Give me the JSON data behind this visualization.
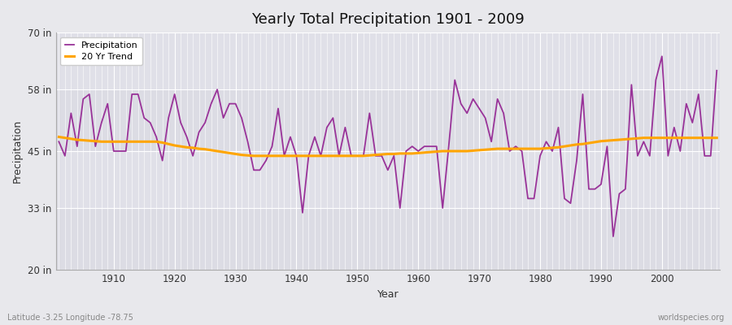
{
  "title": "Yearly Total Precipitation 1901 - 2009",
  "xlabel": "Year",
  "ylabel": "Precipitation",
  "subtitle": "Latitude -3.25 Longitude -78.75",
  "watermark": "worldspecies.org",
  "years": [
    1901,
    1902,
    1903,
    1904,
    1905,
    1906,
    1907,
    1908,
    1909,
    1910,
    1911,
    1912,
    1913,
    1914,
    1915,
    1916,
    1917,
    1918,
    1919,
    1920,
    1921,
    1922,
    1923,
    1924,
    1925,
    1926,
    1927,
    1928,
    1929,
    1930,
    1931,
    1932,
    1933,
    1934,
    1935,
    1936,
    1937,
    1938,
    1939,
    1940,
    1941,
    1942,
    1943,
    1944,
    1945,
    1946,
    1947,
    1948,
    1949,
    1950,
    1951,
    1952,
    1953,
    1954,
    1955,
    1956,
    1957,
    1958,
    1959,
    1960,
    1961,
    1962,
    1963,
    1964,
    1965,
    1966,
    1967,
    1968,
    1969,
    1970,
    1971,
    1972,
    1973,
    1974,
    1975,
    1976,
    1977,
    1978,
    1979,
    1980,
    1981,
    1982,
    1983,
    1984,
    1985,
    1986,
    1987,
    1988,
    1989,
    1990,
    1991,
    1992,
    1993,
    1994,
    1995,
    1996,
    1997,
    1998,
    1999,
    2000,
    2001,
    2002,
    2003,
    2004,
    2005,
    2006,
    2007,
    2008,
    2009
  ],
  "precipitation": [
    47,
    44,
    53,
    46,
    56,
    57,
    46,
    51,
    55,
    45,
    45,
    45,
    57,
    57,
    52,
    51,
    48,
    43,
    52,
    57,
    51,
    48,
    44,
    49,
    51,
    55,
    58,
    52,
    55,
    55,
    52,
    47,
    41,
    41,
    43,
    46,
    54,
    44,
    48,
    44,
    32,
    44,
    48,
    44,
    50,
    52,
    44,
    50,
    44,
    44,
    44,
    53,
    44,
    44,
    41,
    44,
    33,
    45,
    46,
    45,
    46,
    46,
    46,
    33,
    46,
    60,
    55,
    53,
    56,
    54,
    52,
    47,
    56,
    53,
    45,
    46,
    45,
    35,
    35,
    44,
    47,
    45,
    50,
    35,
    34,
    43,
    57,
    37,
    37,
    38,
    46,
    27,
    36,
    37,
    59,
    44,
    47,
    44,
    60,
    65,
    44,
    50,
    45,
    55,
    51,
    57,
    44,
    44,
    62
  ],
  "trend": [
    48.0,
    47.8,
    47.6,
    47.4,
    47.3,
    47.2,
    47.1,
    47.0,
    47.0,
    47.0,
    47.0,
    47.0,
    47.0,
    47.0,
    47.0,
    47.0,
    47.0,
    46.8,
    46.5,
    46.2,
    46.0,
    45.8,
    45.7,
    45.5,
    45.4,
    45.2,
    45.0,
    44.8,
    44.6,
    44.4,
    44.2,
    44.1,
    44.0,
    44.0,
    44.0,
    44.0,
    44.0,
    44.0,
    44.0,
    44.0,
    44.0,
    44.0,
    44.0,
    44.0,
    44.0,
    44.0,
    44.0,
    44.0,
    44.0,
    44.0,
    44.0,
    44.1,
    44.2,
    44.3,
    44.4,
    44.4,
    44.5,
    44.5,
    44.5,
    44.6,
    44.7,
    44.8,
    44.9,
    45.0,
    45.0,
    45.0,
    45.0,
    45.0,
    45.1,
    45.2,
    45.3,
    45.4,
    45.5,
    45.5,
    45.5,
    45.5,
    45.5,
    45.5,
    45.5,
    45.5,
    45.6,
    45.7,
    45.8,
    46.0,
    46.2,
    46.4,
    46.5,
    46.7,
    46.9,
    47.1,
    47.2,
    47.3,
    47.4,
    47.5,
    47.6,
    47.7,
    47.8,
    47.8,
    47.8,
    47.8,
    47.8,
    47.8,
    47.8,
    47.8,
    47.8,
    47.8,
    47.8,
    47.8,
    47.8
  ],
  "precip_color": "#993399",
  "trend_color": "#FFA500",
  "bg_outer_color": "#E8E8EC",
  "bg_plot_color": "#E8E8EC",
  "band_colors": [
    "#DCDCE4",
    "#E8E8EC"
  ],
  "band_ranges": [
    [
      20,
      33
    ],
    [
      33,
      45
    ],
    [
      45,
      58
    ],
    [
      58,
      70
    ]
  ],
  "grid_color": "#FFFFFF",
  "yticks": [
    20,
    33,
    45,
    58,
    70
  ],
  "ytick_labels": [
    "20 in",
    "33 in",
    "45 in",
    "58 in",
    "70 in"
  ],
  "ylim": [
    20,
    70
  ],
  "xlim_start": 1901,
  "xlim_end": 2009
}
